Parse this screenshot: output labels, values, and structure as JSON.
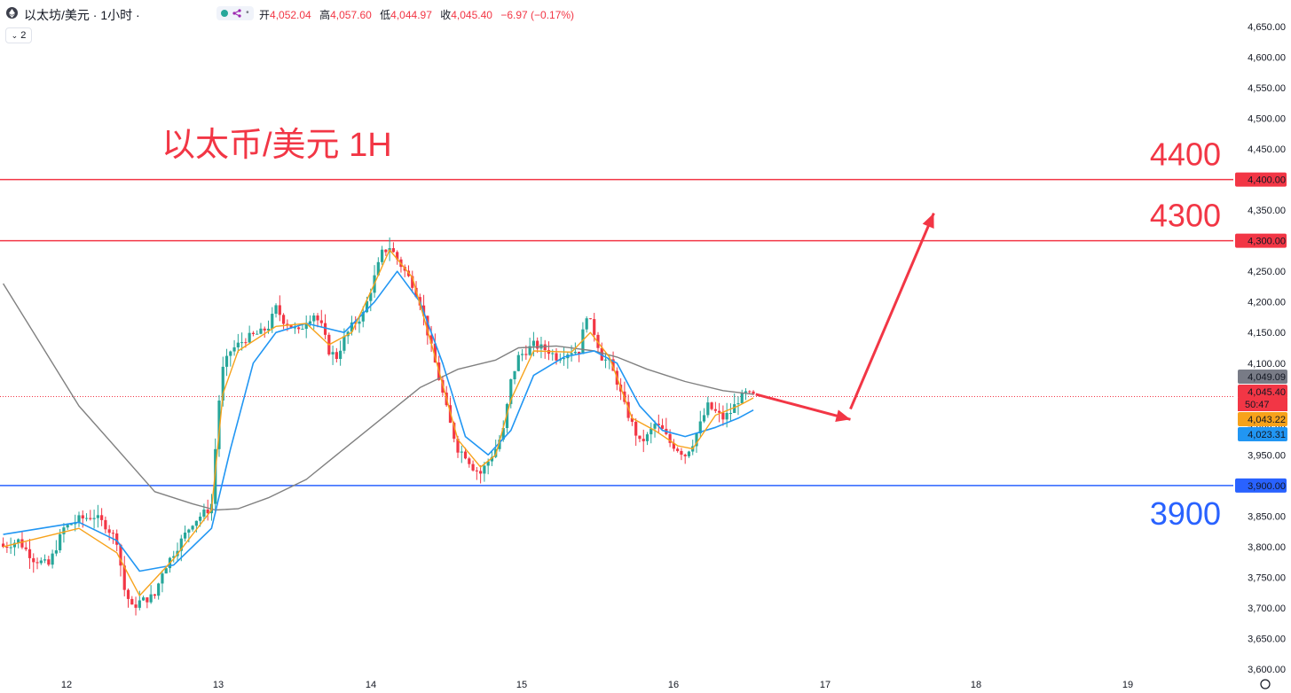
{
  "header": {
    "symbol": "以太坊/美元 · 1小时 ·",
    "open_label": "开",
    "open": "4,052.04",
    "high_label": "高",
    "high": "4,057.60",
    "low_label": "低",
    "low": "4,044.97",
    "close_label": "收",
    "close": "4,045.40",
    "change": "−6.97 (−0.17%)",
    "collapse_count": "2"
  },
  "colors": {
    "up": "#26a69a",
    "down": "#f23645",
    "resistance": "#f23645",
    "support": "#2962ff",
    "ma_fast": "#f7a21b",
    "ma_mid": "#2196f3",
    "ma_slow": "#808080"
  },
  "chart_data": {
    "type": "candlestick",
    "title": "以太币/美元 1H",
    "x_ticks": [
      "12",
      "13",
      "14",
      "15",
      "16",
      "17",
      "18",
      "19"
    ],
    "y_ticks": [
      "4,650.00",
      "4,600.00",
      "4,550.00",
      "4,500.00",
      "4,450.00",
      "4,400.00",
      "4,350.00",
      "4,300.00",
      "4,250.00",
      "4,200.00",
      "4,150.00",
      "4,100.00",
      "4,050.00",
      "4,000.00",
      "3,950.00",
      "3,900.00",
      "3,850.00",
      "3,800.00",
      "3,750.00",
      "3,700.00",
      "3,650.00",
      "3,600.00"
    ],
    "ylim": [
      3590,
      4665
    ],
    "levels": [
      {
        "value": 4400,
        "label": "4400",
        "tag": "4,400.00",
        "color": "#f23645"
      },
      {
        "value": 4300,
        "label": "4300",
        "tag": "4,300.00",
        "color": "#f23645"
      },
      {
        "value": 3900,
        "label": "3900",
        "tag": "3,900.00",
        "color": "#2962ff"
      }
    ],
    "price_tags": [
      {
        "value": 4049.09,
        "text": "4,049.09",
        "bg": "#787b86"
      },
      {
        "value": 4045.4,
        "text": "4,045.40",
        "bg": "#f23645"
      },
      {
        "value": 4043.22,
        "text": "4,043.22",
        "bg": "#f7a21b"
      },
      {
        "value": 4023.31,
        "text": "4,023.31",
        "bg": "#2196f3"
      }
    ],
    "countdown": "50:47",
    "current_price": 4045.4,
    "close_path": [
      [
        0,
        3800
      ],
      [
        4,
        3810
      ],
      [
        8,
        3780
      ],
      [
        12,
        3770
      ],
      [
        16,
        3830
      ],
      [
        20,
        3845
      ],
      [
        24,
        3850
      ],
      [
        27,
        3835
      ],
      [
        30,
        3810
      ],
      [
        32,
        3730
      ],
      [
        34,
        3700
      ],
      [
        36,
        3710
      ],
      [
        40,
        3720
      ],
      [
        42,
        3760
      ],
      [
        45,
        3790
      ],
      [
        48,
        3820
      ],
      [
        50,
        3840
      ],
      [
        52,
        3850
      ],
      [
        54,
        3860
      ],
      [
        55,
        3870
      ],
      [
        56,
        3960
      ],
      [
        57,
        4040
      ],
      [
        58,
        4090
      ],
      [
        60,
        4120
      ],
      [
        62,
        4130
      ],
      [
        64,
        4140
      ],
      [
        68,
        4150
      ],
      [
        70,
        4160
      ],
      [
        72,
        4190
      ],
      [
        74,
        4170
      ],
      [
        76,
        4160
      ],
      [
        78,
        4150
      ],
      [
        80,
        4170
      ],
      [
        82,
        4180
      ],
      [
        84,
        4160
      ],
      [
        86,
        4120
      ],
      [
        88,
        4110
      ],
      [
        90,
        4140
      ],
      [
        92,
        4160
      ],
      [
        95,
        4180
      ],
      [
        98,
        4240
      ],
      [
        100,
        4280
      ],
      [
        102,
        4290
      ],
      [
        104,
        4270
      ],
      [
        106,
        4250
      ],
      [
        108,
        4230
      ],
      [
        110,
        4200
      ],
      [
        112,
        4150
      ],
      [
        114,
        4100
      ],
      [
        116,
        4050
      ],
      [
        118,
        4000
      ],
      [
        120,
        3960
      ],
      [
        122,
        3950
      ],
      [
        124,
        3930
      ],
      [
        126,
        3920
      ],
      [
        128,
        3940
      ],
      [
        130,
        3960
      ],
      [
        132,
        3990
      ],
      [
        134,
        4070
      ],
      [
        136,
        4110
      ],
      [
        138,
        4120
      ],
      [
        140,
        4130
      ],
      [
        142,
        4125
      ],
      [
        144,
        4120
      ],
      [
        146,
        4110
      ],
      [
        148,
        4115
      ],
      [
        150,
        4120
      ],
      [
        152,
        4120
      ],
      [
        154,
        4180
      ],
      [
        156,
        4150
      ],
      [
        158,
        4110
      ],
      [
        160,
        4100
      ],
      [
        162,
        4070
      ],
      [
        164,
        4030
      ],
      [
        166,
        4000
      ],
      [
        168,
        3970
      ],
      [
        170,
        3980
      ],
      [
        172,
        4000
      ],
      [
        174,
        3990
      ],
      [
        176,
        3970
      ],
      [
        178,
        3960
      ],
      [
        180,
        3950
      ],
      [
        182,
        3970
      ],
      [
        184,
        4000
      ],
      [
        186,
        4030
      ],
      [
        188,
        4020
      ],
      [
        190,
        4010
      ],
      [
        192,
        4020
      ],
      [
        194,
        4040
      ],
      [
        196,
        4050
      ],
      [
        198,
        4045.4
      ]
    ],
    "ma_fast": [
      [
        0,
        3800
      ],
      [
        20,
        3830
      ],
      [
        30,
        3790
      ],
      [
        36,
        3720
      ],
      [
        45,
        3780
      ],
      [
        55,
        3860
      ],
      [
        58,
        4050
      ],
      [
        62,
        4120
      ],
      [
        72,
        4160
      ],
      [
        80,
        4165
      ],
      [
        86,
        4130
      ],
      [
        92,
        4150
      ],
      [
        98,
        4230
      ],
      [
        102,
        4285
      ],
      [
        108,
        4240
      ],
      [
        114,
        4110
      ],
      [
        120,
        3975
      ],
      [
        126,
        3930
      ],
      [
        130,
        3950
      ],
      [
        134,
        4040
      ],
      [
        140,
        4120
      ],
      [
        150,
        4118
      ],
      [
        155,
        4150
      ],
      [
        160,
        4110
      ],
      [
        166,
        4010
      ],
      [
        172,
        3990
      ],
      [
        178,
        3965
      ],
      [
        182,
        3960
      ],
      [
        188,
        4015
      ],
      [
        194,
        4030
      ],
      [
        198,
        4043.22
      ]
    ],
    "ma_mid": [
      [
        0,
        3820
      ],
      [
        20,
        3840
      ],
      [
        30,
        3810
      ],
      [
        36,
        3760
      ],
      [
        45,
        3770
      ],
      [
        55,
        3830
      ],
      [
        60,
        3960
      ],
      [
        66,
        4100
      ],
      [
        72,
        4150
      ],
      [
        80,
        4165
      ],
      [
        90,
        4150
      ],
      [
        98,
        4200
      ],
      [
        104,
        4250
      ],
      [
        110,
        4200
      ],
      [
        116,
        4100
      ],
      [
        122,
        3980
      ],
      [
        128,
        3950
      ],
      [
        134,
        3990
      ],
      [
        140,
        4080
      ],
      [
        148,
        4110
      ],
      [
        156,
        4120
      ],
      [
        162,
        4100
      ],
      [
        168,
        4030
      ],
      [
        174,
        3990
      ],
      [
        180,
        3980
      ],
      [
        188,
        3995
      ],
      [
        194,
        4010
      ],
      [
        198,
        4023.31
      ]
    ],
    "ma_slow": [
      [
        0,
        4230
      ],
      [
        10,
        4130
      ],
      [
        20,
        4030
      ],
      [
        30,
        3960
      ],
      [
        40,
        3890
      ],
      [
        50,
        3870
      ],
      [
        56,
        3860
      ],
      [
        62,
        3862
      ],
      [
        70,
        3880
      ],
      [
        80,
        3910
      ],
      [
        90,
        3960
      ],
      [
        100,
        4010
      ],
      [
        110,
        4060
      ],
      [
        120,
        4090
      ],
      [
        130,
        4105
      ],
      [
        136,
        4125
      ],
      [
        146,
        4128
      ],
      [
        156,
        4120
      ],
      [
        162,
        4110
      ],
      [
        170,
        4090
      ],
      [
        180,
        4070
      ],
      [
        190,
        4055
      ],
      [
        198,
        4049.09
      ]
    ],
    "projection_arrows": [
      {
        "from": [
          199,
          4049
        ],
        "to": [
          224,
          4008
        ]
      },
      {
        "from": [
          224,
          4025
        ],
        "to": [
          246,
          4345
        ]
      }
    ]
  }
}
